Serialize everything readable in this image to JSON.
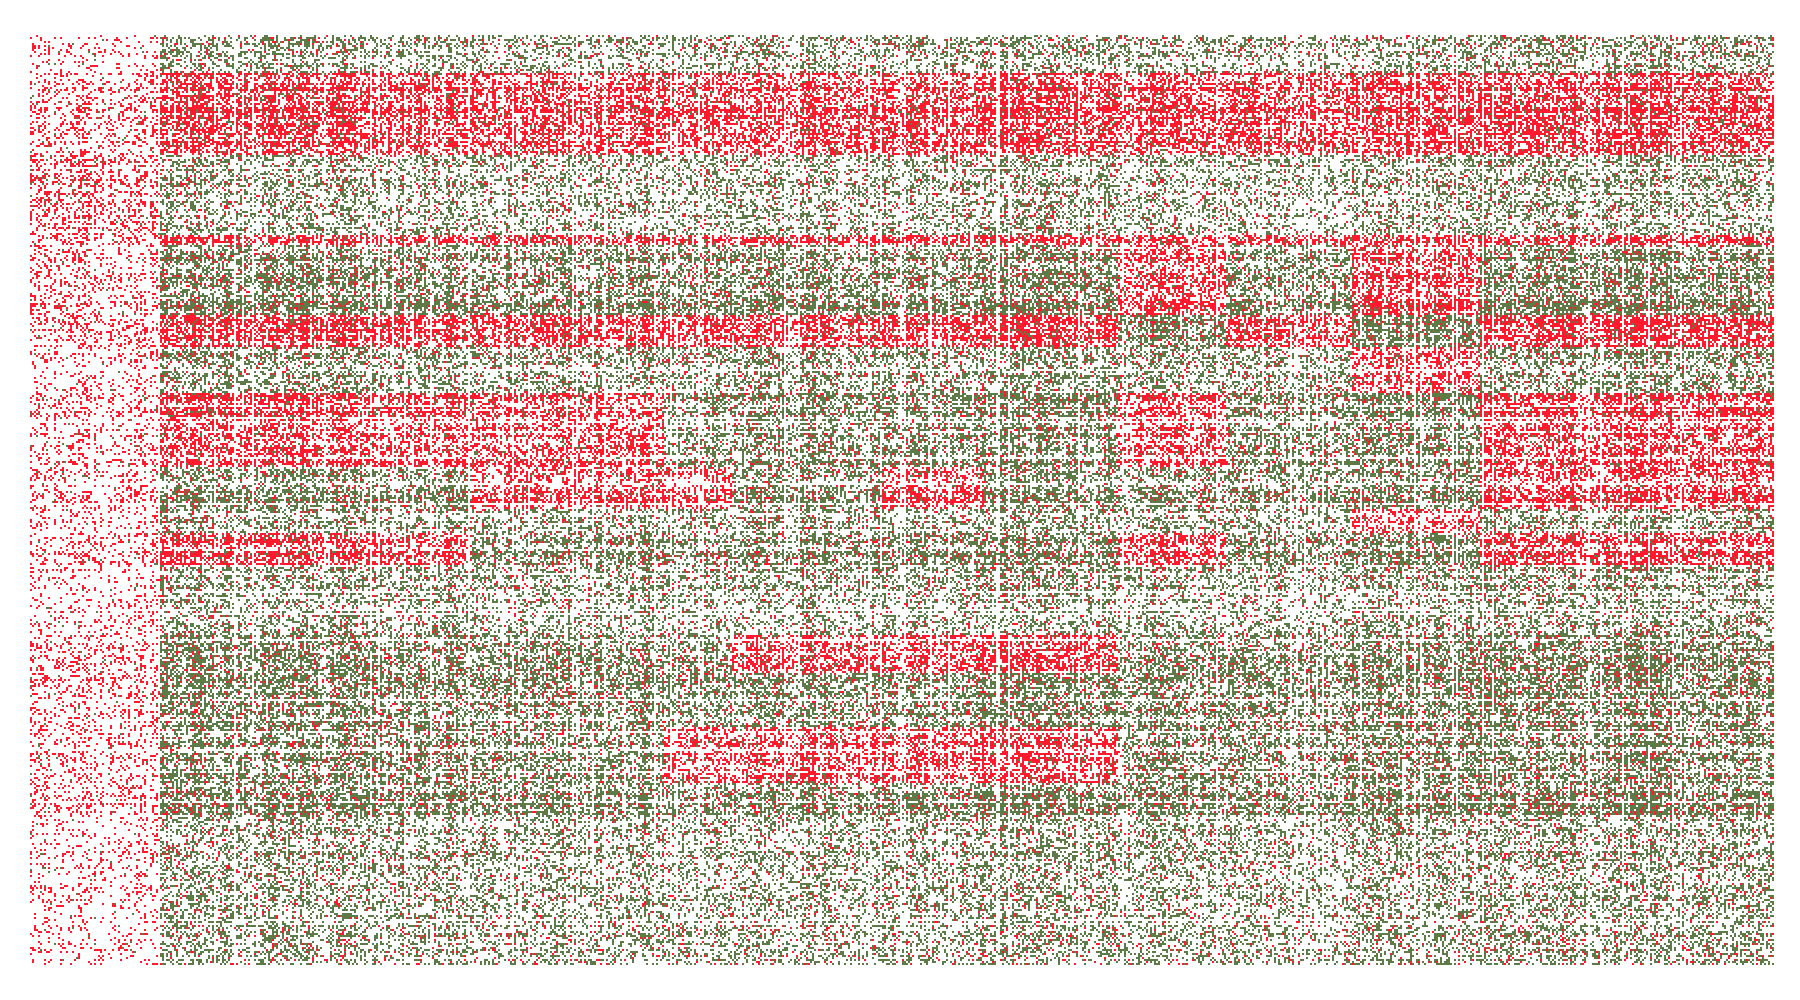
{
  "chart_data": {
    "type": "heatmap",
    "title": "",
    "xlabel": "",
    "ylabel": "",
    "axes_visible": false,
    "grid": false,
    "legend": "none",
    "colors": {
      "background": "#ffffff",
      "value_high": "#ff1a2e",
      "value_low": "#5e7a46"
    },
    "levels": [
      "absent",
      "low",
      "high"
    ],
    "column_blocks": [
      {
        "id": "c0",
        "share": 0.062,
        "density": 0.3
      },
      {
        "id": "c1",
        "share": 0.013,
        "density": 0.4
      },
      {
        "id": "c2",
        "share": 0.178,
        "density": 0.62
      },
      {
        "id": "c3",
        "share": 0.111,
        "density": 0.55
      },
      {
        "id": "c4",
        "share": 0.038,
        "density": 0.45
      },
      {
        "id": "c5",
        "share": 0.086,
        "density": 0.6
      },
      {
        "id": "c6",
        "share": 0.059,
        "density": 0.58
      },
      {
        "id": "c7",
        "share": 0.077,
        "density": 0.64
      },
      {
        "id": "c8",
        "share": 0.062,
        "density": 0.5
      },
      {
        "id": "c9",
        "share": 0.072,
        "density": 0.38
      },
      {
        "id": "c10",
        "share": 0.073,
        "density": 0.62
      },
      {
        "id": "c11",
        "share": 0.169,
        "density": 0.66
      }
    ],
    "row_blocks": [
      {
        "id": "r0",
        "share": 0.04,
        "density": 0.3,
        "high_cols": []
      },
      {
        "id": "r1",
        "share": 0.09,
        "density": 0.95,
        "high_cols": [
          "c2",
          "c3",
          "c4",
          "c5",
          "c6",
          "c7",
          "c8",
          "c9",
          "c10",
          "c11"
        ]
      },
      {
        "id": "r2",
        "share": 0.085,
        "density": 0.35,
        "high_cols": [
          "c0"
        ]
      },
      {
        "id": "r3",
        "share": 0.01,
        "density": 0.9,
        "high_cols": [
          "c2",
          "c3",
          "c4",
          "c5",
          "c6",
          "c7",
          "c8",
          "c9",
          "c10",
          "c11"
        ]
      },
      {
        "id": "r4",
        "share": 0.075,
        "density": 0.85,
        "high_cols": [
          "c8",
          "c10"
        ]
      },
      {
        "id": "r5",
        "share": 0.035,
        "density": 0.85,
        "high_cols": [
          "c2",
          "c3",
          "c4",
          "c5",
          "c6",
          "c7",
          "c9",
          "c11"
        ]
      },
      {
        "id": "r6",
        "share": 0.05,
        "density": 0.55,
        "high_cols": [
          "c10"
        ]
      },
      {
        "id": "r7",
        "share": 0.08,
        "density": 0.85,
        "high_cols": [
          "c2",
          "c3",
          "c8",
          "c11"
        ]
      },
      {
        "id": "r8",
        "share": 0.045,
        "density": 0.8,
        "high_cols": [
          "c3",
          "c4",
          "c6",
          "c11"
        ]
      },
      {
        "id": "r9",
        "share": 0.025,
        "density": 0.6,
        "high_cols": [
          "c10"
        ]
      },
      {
        "id": "r10",
        "share": 0.035,
        "density": 0.8,
        "high_cols": [
          "c2",
          "c8",
          "c11"
        ]
      },
      {
        "id": "r11",
        "share": 0.075,
        "density": 0.45,
        "high_cols": []
      },
      {
        "id": "r12",
        "share": 0.04,
        "density": 0.8,
        "high_cols": [
          "c5",
          "c6",
          "c7"
        ]
      },
      {
        "id": "r13",
        "share": 0.06,
        "density": 0.78,
        "high_cols": []
      },
      {
        "id": "r14",
        "share": 0.06,
        "density": 0.8,
        "high_cols": [
          "c4",
          "c5",
          "c6",
          "c7"
        ]
      },
      {
        "id": "r15",
        "share": 0.035,
        "density": 0.82,
        "high_cols": []
      },
      {
        "id": "r16",
        "share": 0.16,
        "density": 0.4,
        "high_cols": []
      }
    ]
  }
}
